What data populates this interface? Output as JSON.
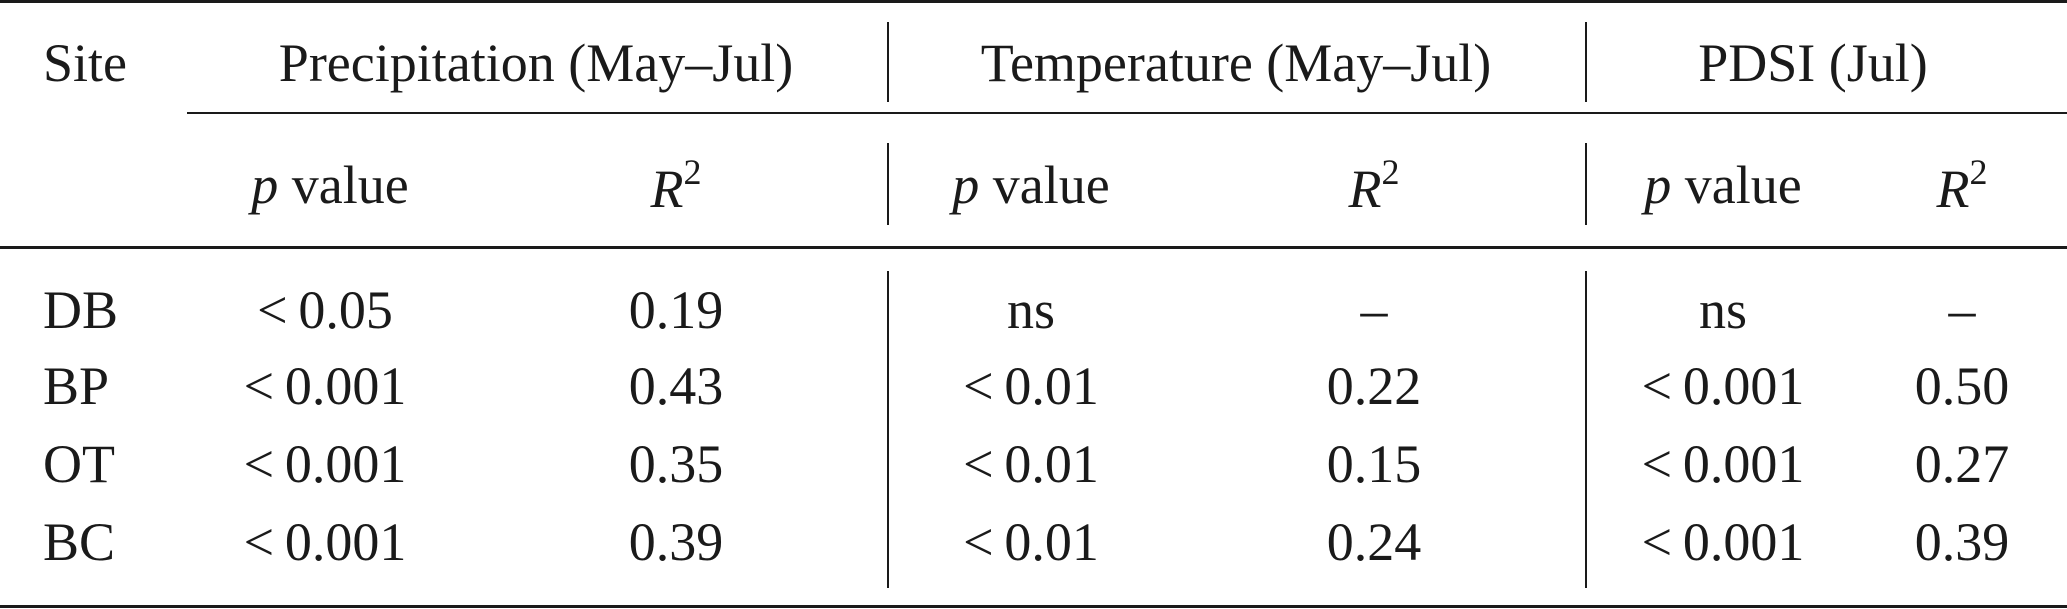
{
  "table": {
    "site_header": "Site",
    "groups": [
      {
        "label": "Precipitation (May–Jul)"
      },
      {
        "label": "Temperature (May–Jul)"
      },
      {
        "label": "PDSI (Jul)"
      }
    ],
    "sub_headers": {
      "p_symbol": "p",
      "p_word": "value",
      "r_symbol": "R",
      "r_exp": "2"
    },
    "rows": [
      {
        "site": "DB",
        "values": [
          "< 0.05",
          "0.19",
          "ns",
          "–",
          "ns",
          "–"
        ]
      },
      {
        "site": "BP",
        "values": [
          "< 0.001",
          "0.43",
          "< 0.01",
          "0.22",
          "< 0.001",
          "0.50"
        ]
      },
      {
        "site": "OT",
        "values": [
          "< 0.001",
          "0.35",
          "< 0.01",
          "0.15",
          "< 0.001",
          "0.27"
        ]
      },
      {
        "site": "BC",
        "values": [
          "< 0.001",
          "0.39",
          "< 0.01",
          "0.24",
          "< 0.001",
          "0.39"
        ]
      }
    ]
  }
}
